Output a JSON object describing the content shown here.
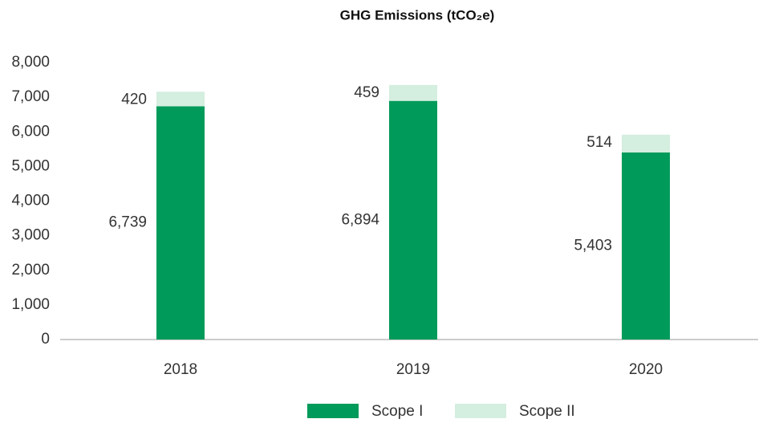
{
  "chart_data": {
    "type": "stacked_bar",
    "title": "GHG Emissions (tCO₂e)",
    "categories": [
      "2018",
      "2019",
      "2020"
    ],
    "series": [
      {
        "name": "Scope I",
        "color": "#009a5a",
        "values": [
          6739,
          6894,
          5403
        ],
        "value_labels": [
          "6,739",
          "6,894",
          "5,403"
        ]
      },
      {
        "name": "Scope II",
        "color": "#d4eedf",
        "values": [
          420,
          459,
          514
        ]
      }
    ],
    "ylim": [
      0,
      8000
    ],
    "yticks": [
      0,
      {
        "value": 1000,
        "label": "1,000"
      },
      {
        "value": 2000,
        "label": "2,000"
      },
      {
        "value": 3000,
        "label": "3,000"
      },
      {
        "value": 4000,
        "label": "4,000"
      },
      {
        "value": 5000,
        "label": "5,000"
      },
      {
        "value": 6000,
        "label": "6,000"
      },
      {
        "value": 7000,
        "label": "7,000"
      },
      {
        "value": 8000,
        "label": "8,000"
      }
    ],
    "grid": false
  }
}
